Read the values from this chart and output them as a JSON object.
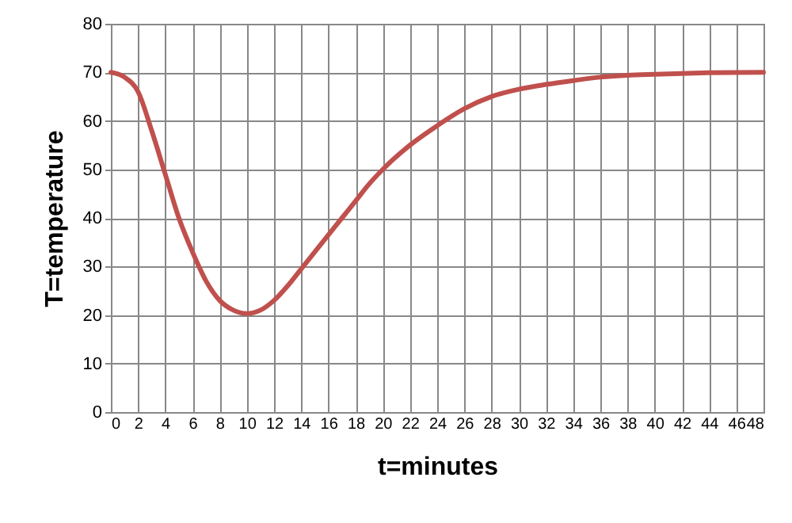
{
  "chart_data": {
    "type": "line",
    "xlabel": "t=minutes",
    "ylabel": "T=temperature",
    "x": [
      0,
      1,
      2,
      3,
      4,
      5,
      6,
      7,
      8,
      9,
      10,
      11,
      12,
      13,
      14,
      15,
      16,
      17,
      18,
      19,
      20,
      22,
      24,
      26,
      28,
      30,
      32,
      34,
      36,
      38,
      40,
      44,
      48
    ],
    "series": [
      {
        "color": "#c0504d",
        "values": [
          70,
          69,
          66,
          58,
          49,
          40,
          33,
          27,
          23,
          21,
          20.3,
          21,
          23,
          26,
          29.5,
          33,
          36.5,
          40,
          43.5,
          47,
          50,
          55,
          59,
          62.5,
          65,
          66.5,
          67.5,
          68.3,
          69,
          69.4,
          69.6,
          69.9,
          70
        ]
      }
    ],
    "xlim": [
      0,
      48
    ],
    "xticks": [
      0,
      2,
      4,
      6,
      8,
      10,
      12,
      14,
      16,
      18,
      20,
      22,
      24,
      26,
      28,
      30,
      32,
      34,
      36,
      38,
      40,
      42,
      44,
      46,
      48
    ],
    "ylim": [
      0,
      80
    ],
    "yticks": [
      0,
      10,
      20,
      30,
      40,
      50,
      60,
      70,
      80
    ],
    "grid": true,
    "marker": "none",
    "line_style": "solid"
  }
}
